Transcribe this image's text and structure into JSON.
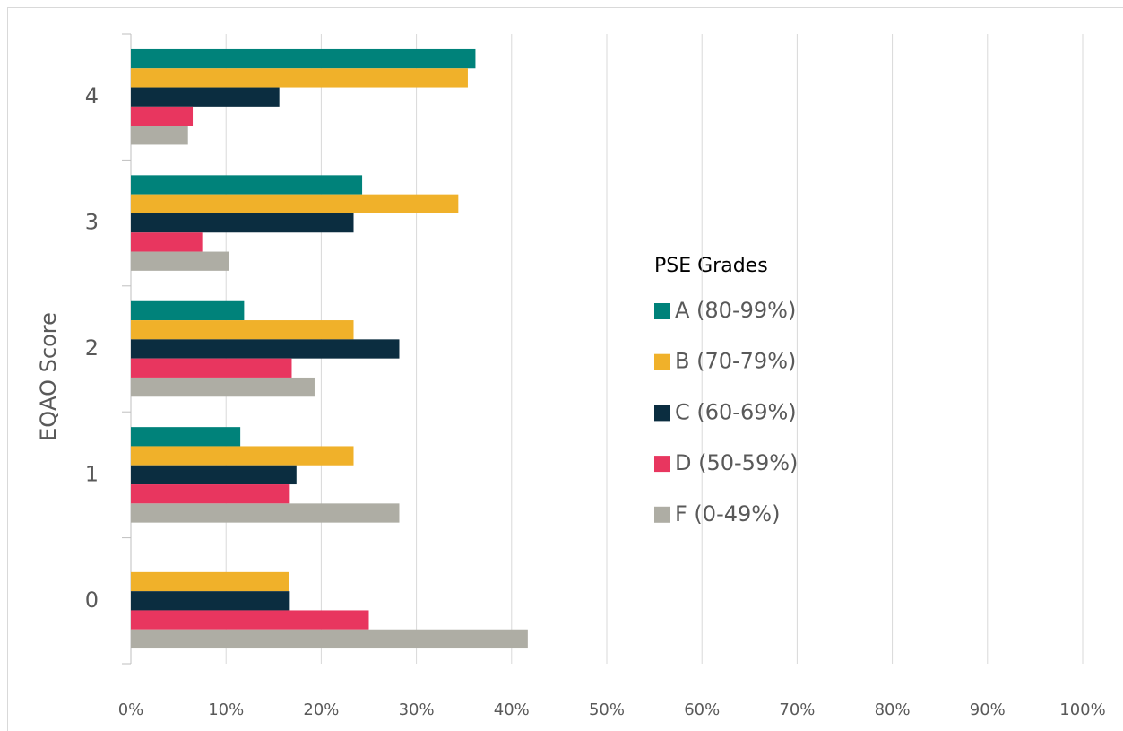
{
  "chart_data": {
    "type": "bar",
    "orientation": "horizontal",
    "y_label": "EQAO Score",
    "legend_title": "PSE Grades",
    "legend": "right",
    "grid": true,
    "categories": [
      "0",
      "1",
      "2",
      "3",
      "4"
    ],
    "series": [
      {
        "name": "A (80-99%)",
        "color": "#00827a",
        "values": [
          0,
          11.5,
          11.9,
          24.3,
          36.2
        ]
      },
      {
        "name": "B (70-79%)",
        "color": "#f0b12a",
        "values": [
          16.6,
          23.4,
          23.4,
          34.4,
          35.4
        ]
      },
      {
        "name": "C (60-69%)",
        "color": "#0b2d40",
        "values": [
          16.7,
          17.4,
          28.2,
          23.4,
          15.6
        ]
      },
      {
        "name": "D (50-59%)",
        "color": "#e8365f",
        "values": [
          25.0,
          16.7,
          16.9,
          7.5,
          6.5
        ]
      },
      {
        "name": "F (0-49%)",
        "color": "#aeada4",
        "values": [
          41.7,
          28.2,
          19.3,
          10.3,
          6.0
        ]
      }
    ],
    "xlim": [
      0,
      100
    ],
    "xticks": [
      {
        "value": 0,
        "label": "0%"
      },
      {
        "value": 10,
        "label": "10%"
      },
      {
        "value": 20,
        "label": "20%"
      },
      {
        "value": 30,
        "label": "30%"
      },
      {
        "value": 40,
        "label": "40%"
      },
      {
        "value": 50,
        "label": "50%"
      },
      {
        "value": 60,
        "label": "60%"
      },
      {
        "value": 70,
        "label": "70%"
      },
      {
        "value": 80,
        "label": "80%"
      },
      {
        "value": 90,
        "label": "90%"
      },
      {
        "value": 100,
        "label": "100%"
      }
    ]
  }
}
